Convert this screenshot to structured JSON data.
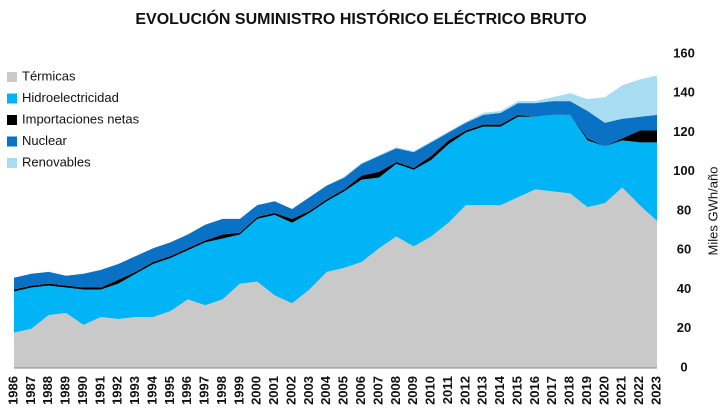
{
  "chart_data": {
    "type": "stacked_area",
    "title": "EVOLUCIÓN SUMINISTRO HISTÓRICO ELÉCTRICO BRUTO",
    "y_label": "Miles GWh/año",
    "categories": [
      "1986",
      "1987",
      "1988",
      "1989",
      "1990",
      "1991",
      "1992",
      "1993",
      "1994",
      "1995",
      "1996",
      "1997",
      "1998",
      "1999",
      "2000",
      "2001",
      "2002",
      "2003",
      "2004",
      "2005",
      "2006",
      "2007",
      "2008",
      "2009",
      "2010",
      "2011",
      "2012",
      "2013",
      "2014",
      "2015",
      "2016",
      "2017",
      "2018",
      "2019",
      "2020",
      "2021",
      "2022",
      "2023"
    ],
    "series": [
      {
        "name": "Térmicas",
        "color": "#c9c9c9",
        "values": [
          18,
          20,
          27,
          28,
          22,
          26,
          25,
          26,
          26,
          29,
          35,
          32,
          35,
          43,
          44,
          37,
          33,
          40,
          49,
          51,
          54,
          61,
          67,
          62,
          67,
          74,
          83,
          83,
          83,
          87,
          91,
          90,
          89,
          82,
          84,
          92,
          83,
          75
        ]
      },
      {
        "name": "Hidroelectricidad",
        "color": "#00b4f5",
        "values": [
          21,
          21,
          15,
          13,
          18,
          14,
          18,
          22,
          27,
          27,
          25,
          32,
          31,
          25,
          32,
          41,
          41,
          39,
          36,
          39,
          42,
          36,
          37,
          39,
          39,
          40,
          37,
          40,
          40,
          41,
          37,
          39,
          40,
          34,
          29,
          24,
          32,
          40
        ]
      },
      {
        "name": "Importaciones netas",
        "color": "#000000",
        "values": [
          1,
          1,
          1,
          1,
          1,
          1,
          2,
          1,
          1,
          1,
          1,
          1,
          2,
          1,
          1,
          1,
          2,
          1,
          1,
          1,
          2,
          3,
          1,
          1,
          2,
          2,
          1,
          1,
          1,
          1,
          0,
          0,
          0,
          1,
          0,
          1,
          6,
          6
        ]
      },
      {
        "name": "Nuclear",
        "color": "#0a72c4",
        "values": [
          6,
          6,
          6,
          5,
          7,
          9,
          8,
          8,
          7,
          7,
          7,
          8,
          8,
          7,
          6,
          6,
          5,
          7,
          7,
          6,
          6,
          8,
          7,
          8,
          7,
          4,
          4,
          5,
          6,
          6,
          7,
          7,
          7,
          14,
          12,
          10,
          7,
          8
        ]
      },
      {
        "name": "Renovables",
        "color": "#a8dcf0",
        "values": [
          0,
          0,
          0,
          0,
          0,
          0,
          0,
          0,
          0,
          0,
          0,
          0,
          0,
          0,
          0,
          0,
          0,
          0,
          0,
          0.5,
          0.5,
          0.5,
          0.5,
          0.5,
          0.5,
          0.5,
          0.5,
          1,
          1,
          1,
          1,
          2,
          4,
          6,
          13,
          17,
          19,
          20
        ]
      }
    ],
    "ylim": [
      0,
      160
    ],
    "yticks": [
      0,
      20,
      40,
      60,
      80,
      100,
      120,
      140,
      160
    ],
    "y_axis_side": "right",
    "legend": "upper-left"
  }
}
